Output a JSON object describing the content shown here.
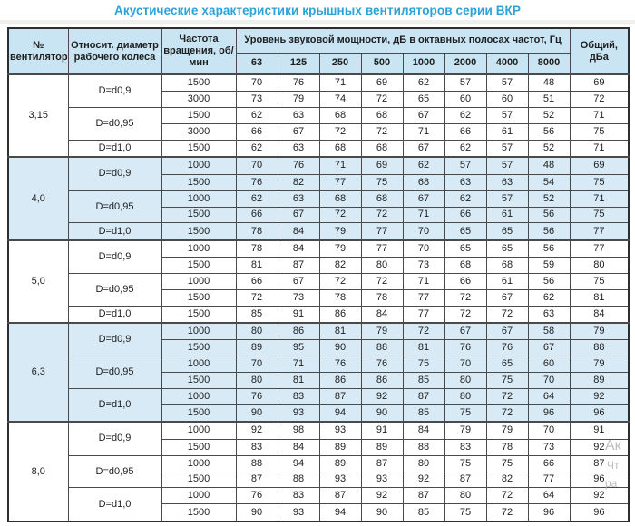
{
  "title": "Акустические характеристики крышных вентиляторов серии ВКР",
  "colors": {
    "title_accent": "#2aa3d8",
    "header_bg": "#c9e4f3",
    "shaded_row_bg": "#d7eaf6",
    "border": "#4a4a4a",
    "watermark": "#aeaeae"
  },
  "watermark": {
    "lines": [
      "Ак",
      "Чт",
      "ра"
    ]
  },
  "chart_data": {
    "type": "table",
    "title": "Акустические характеристики крышных вентиляторов серии ВКР",
    "headers": {
      "fan": "№ вентилятора",
      "diameter": "Относит. диаметр рабочего колеса",
      "speed": "Частота вращения, об/мин",
      "band_group": "Уровень звуковой мощности, дБ в октавных полосах частот, Гц",
      "bands": [
        "63",
        "125",
        "250",
        "500",
        "1000",
        "2000",
        "4000",
        "8000"
      ],
      "total": "Общий, дБа"
    },
    "groups": [
      {
        "fan": "3,15",
        "shaded": false,
        "subgroups": [
          {
            "diameter": "D=d0,9",
            "rows": [
              {
                "speed": "1500",
                "levels": [
                  70,
                  76,
                  71,
                  69,
                  62,
                  57,
                  57,
                  48
                ],
                "total": 69
              },
              {
                "speed": "3000",
                "levels": [
                  73,
                  79,
                  74,
                  72,
                  65,
                  60,
                  60,
                  51
                ],
                "total": 72
              }
            ]
          },
          {
            "diameter": "D=d0,95",
            "rows": [
              {
                "speed": "1500",
                "levels": [
                  62,
                  63,
                  68,
                  68,
                  67,
                  62,
                  57,
                  52
                ],
                "total": 71
              },
              {
                "speed": "3000",
                "levels": [
                  66,
                  67,
                  72,
                  72,
                  71,
                  66,
                  61,
                  56
                ],
                "total": 75
              }
            ]
          },
          {
            "diameter": "D=d1,0",
            "rows": [
              {
                "speed": "1500",
                "levels": [
                  62,
                  63,
                  68,
                  68,
                  67,
                  62,
                  57,
                  52
                ],
                "total": 71
              }
            ]
          }
        ]
      },
      {
        "fan": "4,0",
        "shaded": true,
        "subgroups": [
          {
            "diameter": "D=d0,9",
            "rows": [
              {
                "speed": "1000",
                "levels": [
                  70,
                  76,
                  71,
                  69,
                  62,
                  57,
                  57,
                  48
                ],
                "total": 69
              },
              {
                "speed": "1500",
                "levels": [
                  76,
                  82,
                  77,
                  75,
                  68,
                  63,
                  63,
                  54
                ],
                "total": 75
              }
            ]
          },
          {
            "diameter": "D=d0,95",
            "rows": [
              {
                "speed": "1000",
                "levels": [
                  62,
                  63,
                  68,
                  68,
                  67,
                  62,
                  57,
                  52
                ],
                "total": 71
              },
              {
                "speed": "1500",
                "levels": [
                  66,
                  67,
                  72,
                  72,
                  71,
                  66,
                  61,
                  56
                ],
                "total": 75
              }
            ]
          },
          {
            "diameter": "D=d1,0",
            "rows": [
              {
                "speed": "1500",
                "levels": [
                  78,
                  84,
                  79,
                  77,
                  70,
                  65,
                  65,
                  56
                ],
                "total": 77
              }
            ]
          }
        ]
      },
      {
        "fan": "5,0",
        "shaded": false,
        "subgroups": [
          {
            "diameter": "D=d0,9",
            "rows": [
              {
                "speed": "1000",
                "levels": [
                  78,
                  84,
                  79,
                  77,
                  70,
                  65,
                  65,
                  56
                ],
                "total": 77
              },
              {
                "speed": "1500",
                "levels": [
                  81,
                  87,
                  82,
                  80,
                  73,
                  68,
                  68,
                  59
                ],
                "total": 80
              }
            ]
          },
          {
            "diameter": "D=d0,95",
            "rows": [
              {
                "speed": "1000",
                "levels": [
                  66,
                  67,
                  72,
                  72,
                  71,
                  66,
                  61,
                  56
                ],
                "total": 75
              },
              {
                "speed": "1500",
                "levels": [
                  72,
                  73,
                  78,
                  78,
                  77,
                  72,
                  67,
                  62
                ],
                "total": 81
              }
            ]
          },
          {
            "diameter": "D=d1,0",
            "rows": [
              {
                "speed": "1500",
                "levels": [
                  85,
                  91,
                  86,
                  84,
                  77,
                  72,
                  72,
                  63
                ],
                "total": 84
              }
            ]
          }
        ]
      },
      {
        "fan": "6,3",
        "shaded": true,
        "subgroups": [
          {
            "diameter": "D=d0,9",
            "rows": [
              {
                "speed": "1000",
                "levels": [
                  80,
                  86,
                  81,
                  79,
                  72,
                  67,
                  67,
                  58
                ],
                "total": 79
              },
              {
                "speed": "1500",
                "levels": [
                  89,
                  95,
                  90,
                  88,
                  81,
                  76,
                  76,
                  67
                ],
                "total": 88
              }
            ]
          },
          {
            "diameter": "D=d0,95",
            "rows": [
              {
                "speed": "1000",
                "levels": [
                  70,
                  71,
                  76,
                  76,
                  75,
                  70,
                  65,
                  60
                ],
                "total": 79
              },
              {
                "speed": "1500",
                "levels": [
                  80,
                  81,
                  86,
                  86,
                  85,
                  80,
                  75,
                  70
                ],
                "total": 89
              }
            ]
          },
          {
            "diameter": "D=d1,0",
            "rows": [
              {
                "speed": "1000",
                "levels": [
                  76,
                  83,
                  87,
                  92,
                  87,
                  80,
                  72,
                  64
                ],
                "total": 92
              },
              {
                "speed": "1500",
                "levels": [
                  90,
                  93,
                  94,
                  90,
                  85,
                  75,
                  72,
                  96
                ],
                "total": 96
              }
            ]
          }
        ]
      },
      {
        "fan": "8,0",
        "shaded": false,
        "subgroups": [
          {
            "diameter": "D=d0,9",
            "rows": [
              {
                "speed": "1000",
                "levels": [
                  92,
                  98,
                  93,
                  91,
                  84,
                  79,
                  79,
                  70
                ],
                "total": 91
              },
              {
                "speed": "1500",
                "levels": [
                  83,
                  84,
                  89,
                  89,
                  88,
                  83,
                  78,
                  73
                ],
                "total": 92
              }
            ]
          },
          {
            "diameter": "D=d0,95",
            "rows": [
              {
                "speed": "1000",
                "levels": [
                  88,
                  94,
                  89,
                  87,
                  80,
                  75,
                  75,
                  66
                ],
                "total": 87
              },
              {
                "speed": "1500",
                "levels": [
                  87,
                  88,
                  93,
                  93,
                  92,
                  87,
                  82,
                  77
                ],
                "total": 96
              }
            ]
          },
          {
            "diameter": "D=d1,0",
            "rows": [
              {
                "speed": "1000",
                "levels": [
                  76,
                  83,
                  87,
                  92,
                  87,
                  80,
                  72,
                  64
                ],
                "total": 92
              },
              {
                "speed": "1500",
                "levels": [
                  90,
                  93,
                  94,
                  90,
                  85,
                  75,
                  72,
                  96
                ],
                "total": 96
              }
            ]
          }
        ]
      }
    ]
  }
}
